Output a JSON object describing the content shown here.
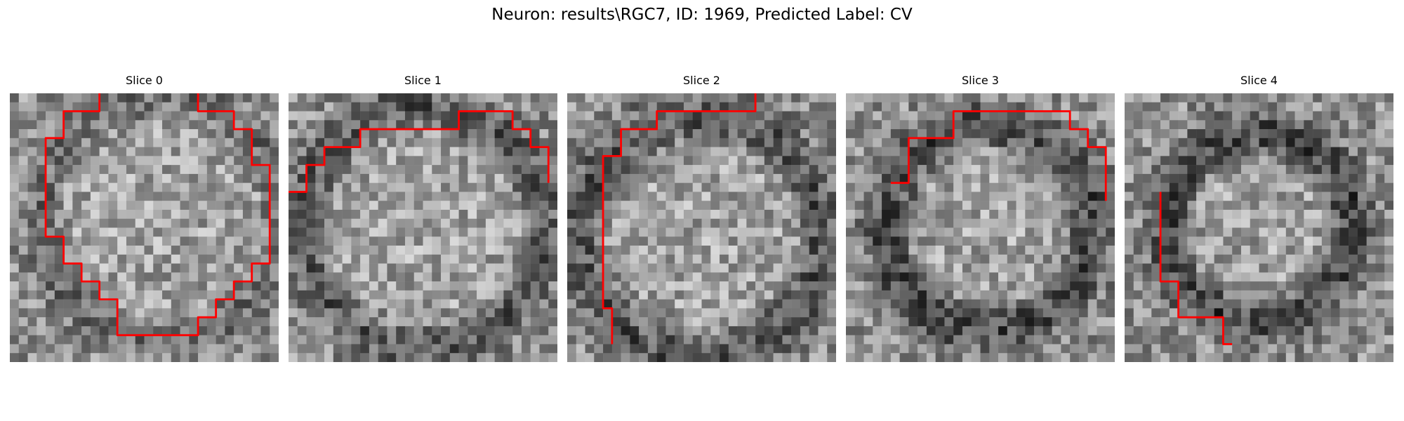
{
  "figure": {
    "title": "Neuron: results\\RGC7, ID: 1969, Predicted Label: CV"
  },
  "grid": {
    "pixels_per_side": 30
  },
  "contour_color": "#ff0000",
  "slices": [
    {
      "label": "Slice 0",
      "contour": [
        [
          10,
          0
        ],
        [
          10,
          2
        ],
        [
          6,
          2
        ],
        [
          6,
          5
        ],
        [
          4,
          5
        ],
        [
          4,
          16
        ],
        [
          6,
          16
        ],
        [
          6,
          19
        ],
        [
          8,
          19
        ],
        [
          8,
          21
        ],
        [
          10,
          21
        ],
        [
          10,
          23
        ],
        [
          12,
          23
        ],
        [
          12,
          27
        ],
        [
          21,
          27
        ],
        [
          21,
          25
        ],
        [
          23,
          25
        ],
        [
          23,
          23
        ],
        [
          25,
          23
        ],
        [
          25,
          21
        ],
        [
          27,
          21
        ],
        [
          27,
          19
        ],
        [
          29,
          19
        ],
        [
          29,
          8
        ],
        [
          27,
          8
        ],
        [
          27,
          4
        ],
        [
          25,
          4
        ],
        [
          25,
          2
        ],
        [
          21,
          2
        ],
        [
          21,
          0
        ]
      ]
    },
    {
      "label": "Slice 1",
      "contour": [
        [
          0,
          11
        ],
        [
          2,
          11
        ],
        [
          2,
          8
        ],
        [
          4,
          8
        ],
        [
          4,
          6
        ],
        [
          8,
          6
        ],
        [
          8,
          4
        ],
        [
          19,
          4
        ],
        [
          19,
          2
        ],
        [
          25,
          2
        ],
        [
          25,
          4
        ],
        [
          27,
          4
        ],
        [
          27,
          6
        ],
        [
          29,
          6
        ],
        [
          29,
          10
        ]
      ]
    },
    {
      "label": "Slice 2",
      "contour": [
        [
          5,
          28
        ],
        [
          5,
          24
        ],
        [
          4,
          24
        ],
        [
          4,
          7
        ],
        [
          6,
          7
        ],
        [
          6,
          4
        ],
        [
          10,
          4
        ],
        [
          10,
          2
        ],
        [
          21,
          2
        ],
        [
          21,
          0
        ]
      ]
    },
    {
      "label": "Slice 3",
      "contour": [
        [
          5,
          10
        ],
        [
          7,
          10
        ],
        [
          7,
          5
        ],
        [
          12,
          5
        ],
        [
          12,
          2
        ],
        [
          25,
          2
        ],
        [
          25,
          4
        ],
        [
          27,
          4
        ],
        [
          27,
          6
        ],
        [
          29,
          6
        ],
        [
          29,
          12
        ]
      ]
    },
    {
      "label": "Slice 4",
      "contour": [
        [
          4,
          11
        ],
        [
          4,
          21
        ],
        [
          6,
          21
        ],
        [
          6,
          25
        ],
        [
          11,
          25
        ],
        [
          11,
          28
        ],
        [
          12,
          28
        ]
      ]
    }
  ]
}
